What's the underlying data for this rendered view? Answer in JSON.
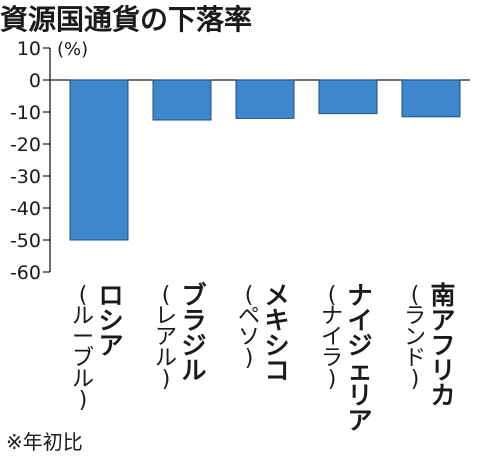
{
  "colors": {
    "bar": "#3d87cc",
    "bar_edge": "#1f4f80",
    "axis": "#1a1a1a"
  },
  "note": "※年初比",
  "chart_data": {
    "type": "bar",
    "title": "資源国通貨の下落率",
    "unit": "(%)",
    "ylim": [
      -60,
      10
    ],
    "yticks": [
      10,
      0,
      -10,
      -20,
      -30,
      -40,
      -50,
      -60
    ],
    "grid": false,
    "categories": [
      {
        "name": "ロシア",
        "sub": "(ルーブル)"
      },
      {
        "name": "ブラジル",
        "sub": "(レアル)"
      },
      {
        "name": "メキシコ",
        "sub": "(ペソ)"
      },
      {
        "name": "ナイジェリア",
        "sub": "(ナイラ)"
      },
      {
        "name": "南アフリカ",
        "sub": "(ランド)"
      }
    ],
    "values": [
      -50,
      -12.5,
      -12,
      -10.5,
      -11.5
    ]
  }
}
